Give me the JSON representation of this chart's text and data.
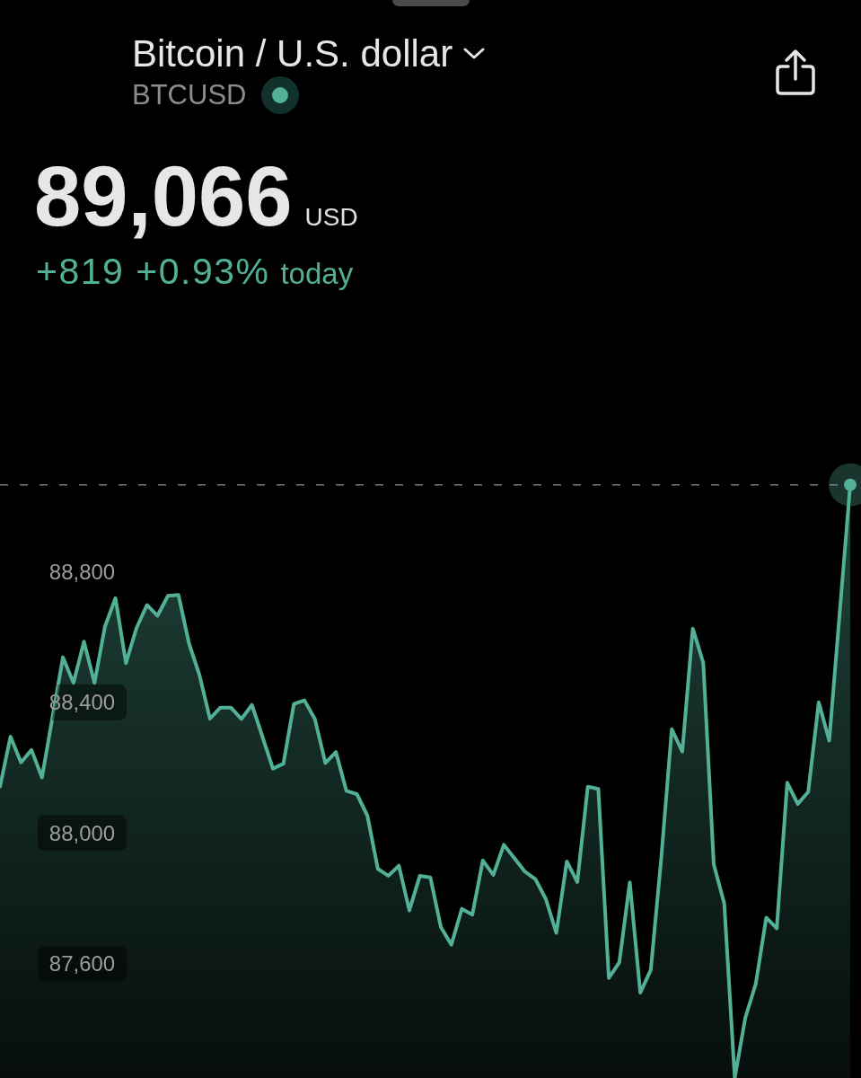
{
  "chart_data": {
    "type": "area",
    "title": "Bitcoin / U.S. dollar",
    "subtitle": "BTCUSD",
    "annotations": [
      "89,066",
      "USD",
      "+819 +0.93%",
      "today"
    ],
    "categories": [
      null,
      null,
      null,
      null,
      null,
      null,
      null,
      null,
      null,
      null,
      null,
      null,
      null,
      null,
      null,
      null,
      null,
      null,
      null,
      null,
      null,
      null,
      null,
      null,
      null,
      null,
      null,
      null,
      null,
      null,
      null,
      null,
      null,
      null,
      null,
      null,
      null,
      null,
      null,
      null,
      null,
      null,
      null,
      null,
      null,
      null,
      null,
      null,
      null,
      null,
      null,
      null,
      null,
      null,
      null,
      null,
      null,
      null,
      null,
      null,
      null,
      null,
      null,
      null,
      null,
      null,
      null,
      null,
      null,
      null,
      null,
      null,
      null,
      null,
      null,
      null,
      null,
      null,
      null,
      null,
      null,
      null
    ],
    "series": [
      {
        "color": "#52b096",
        "values": [
          88142,
          88295,
          88216,
          88254,
          88170,
          88354,
          88538,
          88459,
          88586,
          88459,
          88632,
          88719,
          88520,
          88627,
          88698,
          88665,
          88726,
          88729,
          88581,
          88484,
          88350,
          88384,
          88384,
          88349,
          88392,
          88295,
          88197,
          88212,
          88395,
          88406,
          88349,
          88214,
          88248,
          88129,
          88119,
          88053,
          87890,
          87869,
          87900,
          87763,
          87869,
          87864,
          87712,
          87658,
          87768,
          87750,
          87916,
          87872,
          87964,
          87923,
          87882,
          87859,
          87798,
          87694,
          87913,
          87850,
          88142,
          88135,
          87556,
          87604,
          87849,
          87511,
          87581,
          87924,
          88318,
          88249,
          88626,
          88521,
          87904,
          87784,
          87250,
          87434,
          87538,
          87741,
          87708,
          88154,
          88089,
          88126,
          88400,
          88283,
          88675,
          89066
        ]
      }
    ],
    "ylim": [
      87250,
      90550
    ],
    "yticks": [
      {
        "value": 87600,
        "label": "87,600"
      },
      {
        "value": 88000,
        "label": "88,000"
      },
      {
        "value": 88400,
        "label": "88,400"
      },
      {
        "value": 88800,
        "label": "88,800"
      }
    ],
    "tick_labels": "y",
    "ref_lines": [
      {
        "axis": "y",
        "value": 89066,
        "color": "#7a7a7a",
        "line_style": "dashed"
      }
    ]
  }
}
